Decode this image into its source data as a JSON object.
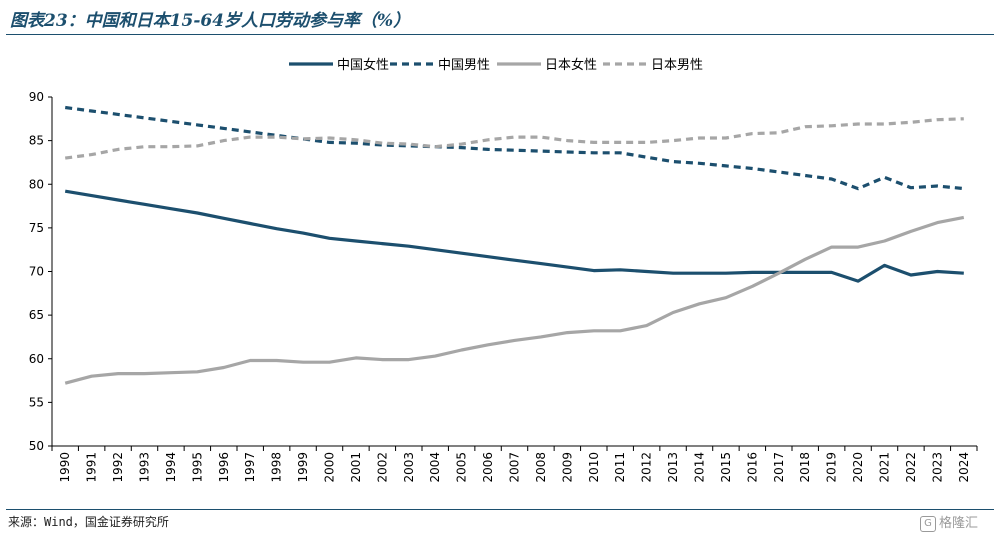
{
  "title": "图表23：中国和日本15-64岁人口劳动参与率（%）",
  "source": "来源：Wind，国金证券研究所",
  "watermark": "格隆汇",
  "chart_data": {
    "type": "line",
    "x": [
      "1990",
      "1991",
      "1992",
      "1993",
      "1994",
      "1995",
      "1996",
      "1997",
      "1998",
      "1999",
      "2000",
      "2001",
      "2002",
      "2003",
      "2004",
      "2005",
      "2006",
      "2007",
      "2008",
      "2009",
      "2010",
      "2011",
      "2012",
      "2013",
      "2014",
      "2015",
      "2016",
      "2017",
      "2018",
      "2019",
      "2020",
      "2021",
      "2022",
      "2023",
      "2024"
    ],
    "ylim": [
      50,
      90
    ],
    "yticks": [
      50,
      55,
      60,
      65,
      70,
      75,
      80,
      85,
      90
    ],
    "legend_position": "top-center",
    "series": [
      {
        "name": "中国女性",
        "color": "#1c4f6e",
        "dash": "solid",
        "values": [
          79.2,
          78.7,
          78.2,
          77.7,
          77.2,
          76.7,
          76.1,
          75.5,
          74.9,
          74.4,
          73.8,
          73.5,
          73.2,
          72.9,
          72.5,
          72.1,
          71.7,
          71.3,
          70.9,
          70.5,
          70.1,
          70.2,
          70.0,
          69.8,
          69.8,
          69.8,
          69.9,
          69.9,
          69.9,
          69.9,
          68.9,
          70.7,
          69.6,
          70.0,
          69.8
        ]
      },
      {
        "name": "中国男性",
        "color": "#1c4f6e",
        "dash": "dashed",
        "values": [
          88.8,
          88.4,
          88.0,
          87.6,
          87.2,
          86.8,
          86.4,
          86.0,
          85.6,
          85.2,
          84.8,
          84.7,
          84.5,
          84.4,
          84.3,
          84.2,
          84.0,
          83.9,
          83.8,
          83.7,
          83.6,
          83.6,
          83.1,
          82.6,
          82.4,
          82.1,
          81.8,
          81.4,
          81.0,
          80.6,
          79.5,
          80.8,
          79.6,
          79.8,
          79.5
        ]
      },
      {
        "name": "日本女性",
        "color": "#a6a6a6",
        "dash": "solid",
        "values": [
          57.2,
          58.0,
          58.3,
          58.3,
          58.4,
          58.5,
          59.0,
          59.8,
          59.8,
          59.6,
          59.6,
          60.1,
          59.9,
          59.9,
          60.3,
          61.0,
          61.6,
          62.1,
          62.5,
          63.0,
          63.2,
          63.2,
          63.8,
          65.3,
          66.3,
          67.0,
          68.3,
          69.8,
          71.4,
          72.8,
          72.8,
          73.5,
          74.6,
          75.6,
          76.2
        ]
      },
      {
        "name": "日本男性",
        "color": "#a6a6a6",
        "dash": "dashed",
        "values": [
          83.0,
          83.4,
          84.0,
          84.3,
          84.3,
          84.4,
          85.0,
          85.4,
          85.4,
          85.2,
          85.3,
          85.1,
          84.7,
          84.6,
          84.3,
          84.6,
          85.1,
          85.4,
          85.4,
          85.0,
          84.8,
          84.8,
          84.8,
          85.0,
          85.3,
          85.3,
          85.8,
          85.9,
          86.6,
          86.7,
          86.9,
          86.9,
          87.1,
          87.4,
          87.5
        ]
      }
    ]
  }
}
